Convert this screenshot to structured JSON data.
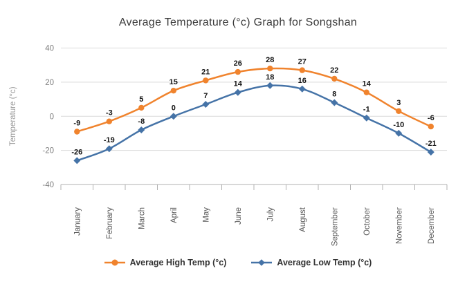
{
  "chart_data": {
    "type": "line",
    "title": "Average Temperature (°c) Graph for Songshan",
    "ylabel": "Temperature (°c)",
    "categories": [
      "January",
      "February",
      "March",
      "April",
      "May",
      "June",
      "July",
      "August",
      "September",
      "October",
      "November",
      "December"
    ],
    "series": [
      {
        "name": "Average High Temp (°c)",
        "color": "#F0832D",
        "marker": "circle",
        "values": [
          -9,
          -3,
          5,
          15,
          21,
          26,
          28,
          27,
          22,
          14,
          3,
          -6
        ]
      },
      {
        "name": "Average Low Temp (°c)",
        "color": "#4573A7",
        "marker": "diamond",
        "values": [
          -26,
          -19,
          -8,
          0,
          7,
          14,
          18,
          16,
          8,
          -1,
          -10,
          -21
        ]
      }
    ],
    "ylim": [
      -40,
      40
    ],
    "yticks": [
      40,
      20,
      0,
      -20,
      -40
    ],
    "grid": true,
    "legend_position": "bottom",
    "data_labels": true,
    "colors": {
      "background": "#FFFFFF",
      "grid": "#D9D9D9",
      "axis": "#B0B0B0",
      "tick_label": "#7F7F7F",
      "category_label": "#5A5A5A",
      "axis_title": "#9A9A9A",
      "data_label": "#141414",
      "title": "#3B3B3B",
      "legend_text": "#333333"
    }
  }
}
